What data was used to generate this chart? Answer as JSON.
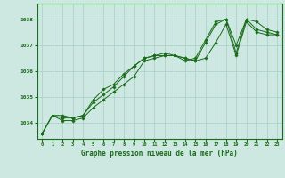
{
  "title": "Graphe pression niveau de la mer (hPa)",
  "bg_color": "#cce8e0",
  "grid_color": "#aacccc",
  "line_color": "#1a6b1a",
  "xlim": [
    -0.5,
    23.5
  ],
  "ylim": [
    1033.4,
    1038.6
  ],
  "yticks": [
    1034,
    1035,
    1036,
    1037,
    1038
  ],
  "xticks": [
    0,
    1,
    2,
    3,
    4,
    5,
    6,
    7,
    8,
    9,
    10,
    11,
    12,
    13,
    14,
    15,
    16,
    17,
    18,
    19,
    20,
    21,
    22,
    23
  ],
  "series1_x": [
    0,
    1,
    2,
    3,
    4,
    5,
    6,
    7,
    8,
    9,
    10,
    11,
    12,
    13,
    14,
    15,
    16,
    17,
    18,
    19,
    20,
    21,
    22,
    23
  ],
  "series1_y": [
    1033.6,
    1034.3,
    1034.2,
    1034.2,
    1034.3,
    1034.8,
    1035.1,
    1035.4,
    1035.8,
    1036.2,
    1036.5,
    1036.6,
    1036.7,
    1036.6,
    1036.4,
    1036.5,
    1037.2,
    1037.9,
    1038.0,
    1037.0,
    1038.0,
    1037.9,
    1037.6,
    1037.5
  ],
  "series2_x": [
    0,
    1,
    2,
    3,
    4,
    5,
    6,
    7,
    8,
    9,
    10,
    11,
    12,
    13,
    14,
    15,
    16,
    17,
    18,
    19,
    20,
    21,
    22,
    23
  ],
  "series2_y": [
    1033.6,
    1034.3,
    1034.3,
    1034.2,
    1034.3,
    1034.9,
    1035.3,
    1035.5,
    1035.9,
    1036.2,
    1036.5,
    1036.6,
    1036.6,
    1036.6,
    1036.5,
    1036.4,
    1037.1,
    1037.8,
    1038.0,
    1036.7,
    1038.0,
    1037.6,
    1037.5,
    1037.4
  ],
  "series3_x": [
    0,
    1,
    2,
    3,
    4,
    5,
    6,
    7,
    8,
    9,
    10,
    11,
    12,
    13,
    14,
    15,
    16,
    17,
    18,
    19,
    20,
    21,
    22,
    23
  ],
  "series3_y": [
    1033.6,
    1034.3,
    1034.1,
    1034.1,
    1034.2,
    1034.6,
    1034.9,
    1035.2,
    1035.5,
    1035.8,
    1036.4,
    1036.5,
    1036.6,
    1036.6,
    1036.5,
    1036.4,
    1036.5,
    1037.1,
    1037.8,
    1036.6,
    1037.9,
    1037.5,
    1037.4,
    1037.4
  ]
}
